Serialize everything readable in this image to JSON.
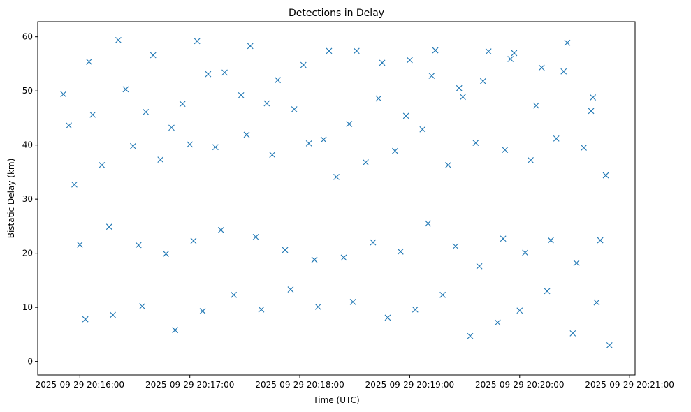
{
  "chart_data": {
    "type": "scatter",
    "title": "Detections in Delay",
    "xlabel": "Time (UTC)",
    "ylabel": "Bistatic Delay (km)",
    "marker": "x",
    "marker_color": "#1f77b4",
    "grid": false,
    "legend": "none",
    "xlim": [
      "2025-09-29 20:15:37",
      "2025-09-29 20:21:03"
    ],
    "ylim": [
      -2.5,
      62.8
    ],
    "xticks": [
      "2025-09-29 20:16:00",
      "2025-09-29 20:17:00",
      "2025-09-29 20:18:00",
      "2025-09-29 20:19:00",
      "2025-09-29 20:20:00",
      "2025-09-29 20:21:00"
    ],
    "yticks": [
      0,
      10,
      20,
      30,
      40,
      50,
      60
    ],
    "series": [
      {
        "x": [
          "20:15:51",
          "20:16:05",
          "20:16:21",
          "20:16:36",
          "20:16:50",
          "20:17:04",
          "20:17:19",
          "20:17:33",
          "20:17:48",
          "20:18:02",
          "20:18:16",
          "20:18:31",
          "20:18:45",
          "20:19:00",
          "20:19:14",
          "20:19:29",
          "20:19:43",
          "20:19:57",
          "20:20:12",
          "20:20:26",
          "20:20:40",
          "20:15:54",
          "20:16:07",
          "20:16:25",
          "20:16:40",
          "20:16:56",
          "20:17:10",
          "20:17:28",
          "20:17:42",
          "20:17:57",
          "20:18:13",
          "20:18:27",
          "20:18:43",
          "20:18:58",
          "20:19:12",
          "20:19:27",
          "20:19:40",
          "20:19:55",
          "20:20:09",
          "20:20:24",
          "20:20:39",
          "20:15:57",
          "20:16:12",
          "20:16:29",
          "20:16:44",
          "20:17:00",
          "20:17:14",
          "20:17:31",
          "20:17:45",
          "20:18:05",
          "20:18:20",
          "20:18:36",
          "20:18:52",
          "20:19:07",
          "20:19:21",
          "20:19:36",
          "20:19:52",
          "20:20:06",
          "20:20:20",
          "20:20:35",
          "20:20:47",
          "20:16:00",
          "20:16:16",
          "20:16:32",
          "20:16:47",
          "20:17:02",
          "20:17:17",
          "20:17:36",
          "20:17:52",
          "20:18:08",
          "20:18:24",
          "20:18:40",
          "20:18:55",
          "20:19:10",
          "20:19:25",
          "20:19:38",
          "20:19:51",
          "20:20:03",
          "20:20:17",
          "20:20:31",
          "20:20:44",
          "20:16:03",
          "20:16:18",
          "20:16:34",
          "20:16:52",
          "20:17:07",
          "20:17:24",
          "20:17:39",
          "20:17:55",
          "20:18:10",
          "20:18:29",
          "20:18:48",
          "20:19:03",
          "20:19:18",
          "20:19:33",
          "20:19:48",
          "20:20:00",
          "20:20:15",
          "20:20:29",
          "20:20:42",
          "20:20:49"
        ],
        "y": [
          49.4,
          55.4,
          59.4,
          46.1,
          43.2,
          59.2,
          53.4,
          58.3,
          52.0,
          54.8,
          57.4,
          57.4,
          55.2,
          55.7,
          57.5,
          48.9,
          57.3,
          57.0,
          54.3,
          58.9,
          48.8,
          43.6,
          45.6,
          50.3,
          56.6,
          47.6,
          53.1,
          49.2,
          47.7,
          46.6,
          41.0,
          43.9,
          48.6,
          45.4,
          52.8,
          50.5,
          51.8,
          55.9,
          47.3,
          53.6,
          46.3,
          32.7,
          36.3,
          39.8,
          37.3,
          40.1,
          39.6,
          41.9,
          38.2,
          40.3,
          34.1,
          36.8,
          38.9,
          42.9,
          36.3,
          40.4,
          39.1,
          37.2,
          41.2,
          39.5,
          34.4,
          21.6,
          24.9,
          21.5,
          19.9,
          22.3,
          24.3,
          23.0,
          20.6,
          18.8,
          19.2,
          22.0,
          20.3,
          25.5,
          21.3,
          17.6,
          22.7,
          20.1,
          22.4,
          18.2,
          22.4,
          7.8,
          8.6,
          10.2,
          5.8,
          9.3,
          12.3,
          9.6,
          13.3,
          10.1,
          11.0,
          8.1,
          9.6,
          12.3,
          4.7,
          7.2,
          9.4,
          13.0,
          5.2,
          10.9,
          3.0
        ]
      }
    ]
  }
}
